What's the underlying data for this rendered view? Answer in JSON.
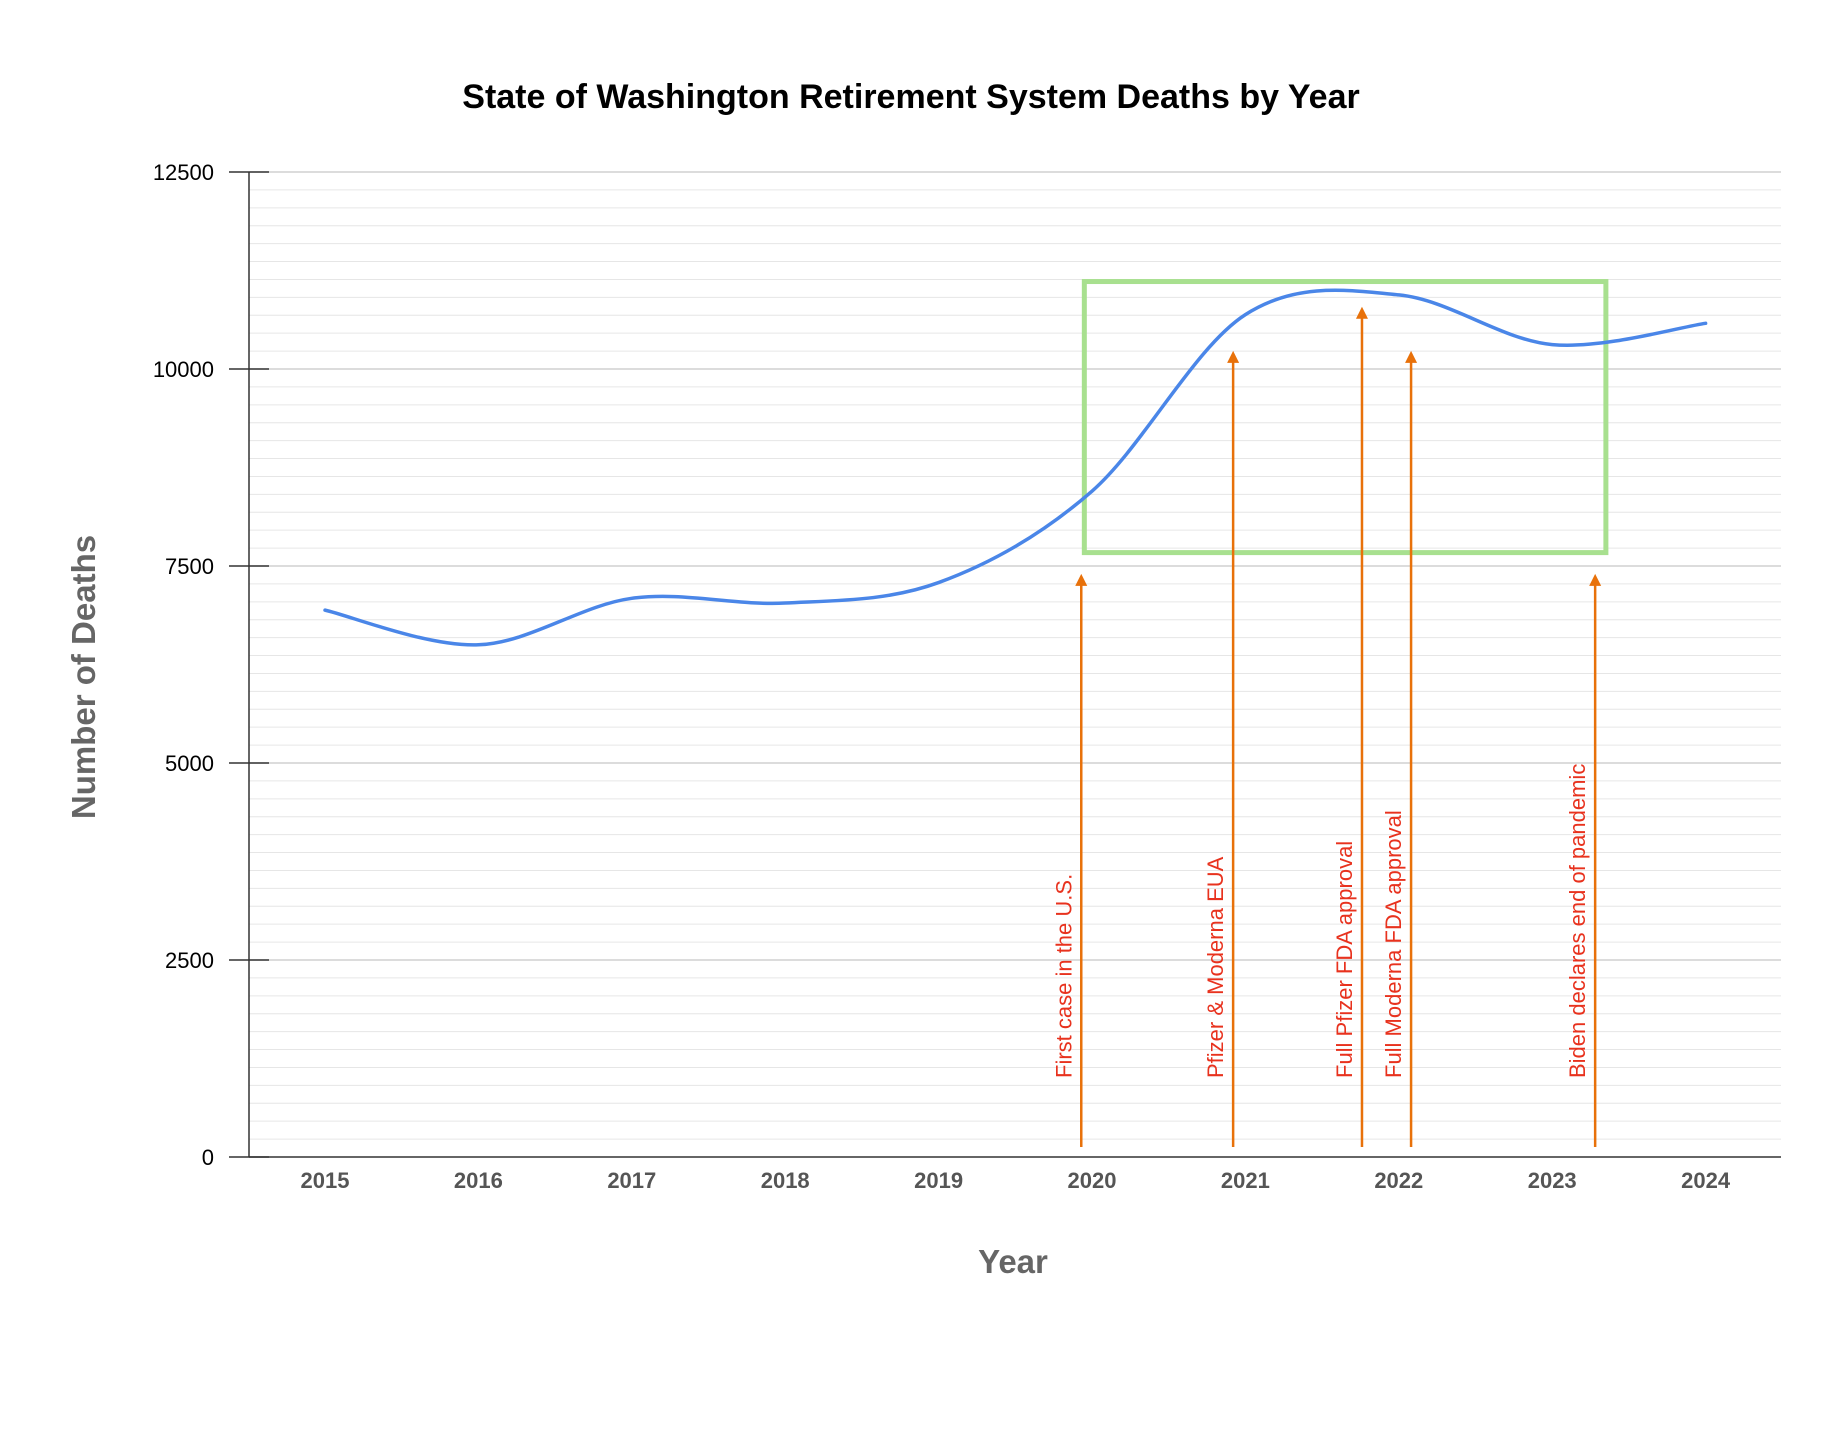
{
  "chart_data": {
    "type": "line",
    "title": "State of Washington Retirement System Deaths by Year",
    "xlabel": "Year",
    "ylabel": "Number of Deaths",
    "categories": [
      "2015",
      "2016",
      "2017",
      "2018",
      "2019",
      "2020",
      "2021",
      "2022",
      "2023",
      "2024"
    ],
    "series": [
      {
        "values": [
          6940,
          6500,
          7090,
          7030,
          7290,
          8450,
          10690,
          10940,
          10310,
          10580
        ]
      }
    ],
    "ylim": [
      0,
      12500
    ],
    "yticks": [
      "0",
      "2500",
      "5000",
      "7500",
      "10000",
      "12500"
    ],
    "grid": true,
    "line_color": "#4a86e8",
    "highlight_box": {
      "x_range": [
        2019.95,
        2023.35
      ],
      "y_range": [
        7670,
        11110
      ],
      "color": "#a8e08f"
    },
    "annotations": [
      {
        "label": "First case in the U.S.",
        "x": 2019.93,
        "y_tip": 7400
      },
      {
        "label": "Pfizer & Moderna EUA",
        "x": 2020.92,
        "y_tip": 10230
      },
      {
        "label": "Full Pfizer FDA approval",
        "x": 2021.76,
        "y_tip": 10790
      },
      {
        "label": "Full Moderna FDA approval",
        "x": 2022.08,
        "y_tip": 10230
      },
      {
        "label": "Biden declares end of pandemic",
        "x": 2023.28,
        "y_tip": 7400
      }
    ],
    "annotation_color": "#e8321e",
    "arrow_color": "#e8710a"
  }
}
